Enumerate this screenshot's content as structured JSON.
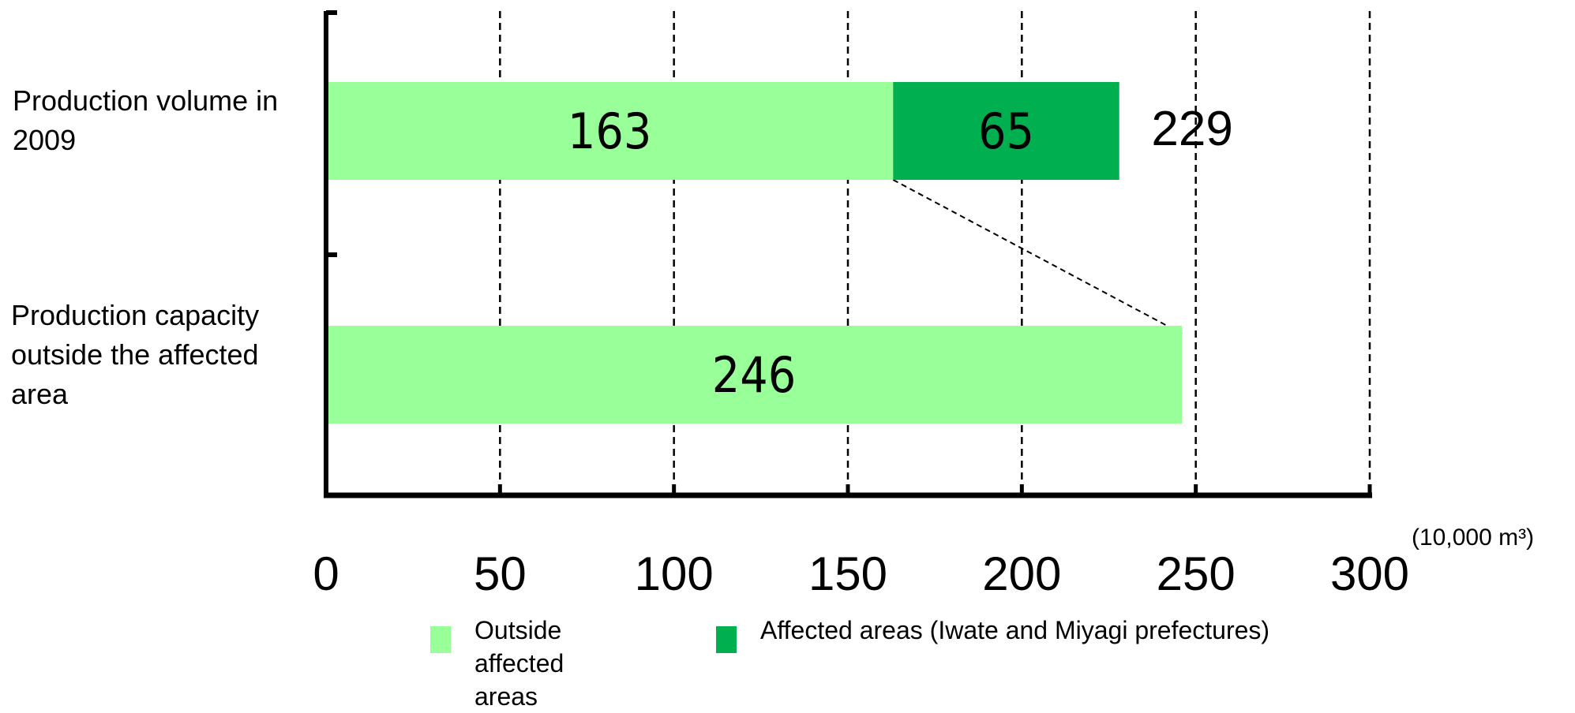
{
  "chart_data": {
    "type": "bar",
    "orientation": "horizontal",
    "stacked": true,
    "categories": [
      "Production volume in 2009",
      "Production capacity outside the affected area"
    ],
    "series": [
      {
        "name": "Outside affected areas",
        "values": [
          163,
          246
        ],
        "color": "#99ff99"
      },
      {
        "name": "Affected areas (Iwate and Miyagi prefectures)",
        "values": [
          65,
          null
        ],
        "color": "#00b050"
      }
    ],
    "totals": [
      229,
      null
    ],
    "xlim": [
      0,
      300
    ],
    "xticks": [
      "0",
      "50",
      "100",
      "150",
      "200",
      "250",
      "300"
    ],
    "unit": "(10,000 m³)",
    "grid": true,
    "legend_position": "bottom"
  }
}
